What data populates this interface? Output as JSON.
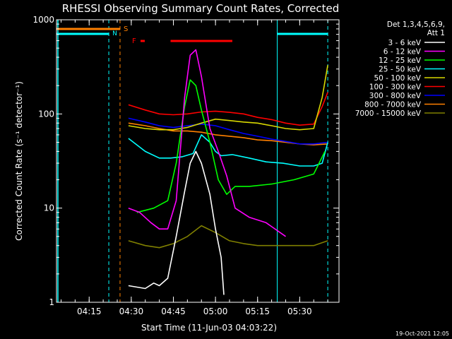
{
  "chart_data": {
    "type": "line",
    "title": "RHESSI Observing Summary Count Rates, Corrected",
    "xlabel": "Start Time (11-Jun-03 04:03:22)",
    "ylabel": "Corrected Count Rate (s⁻¹ detector⁻¹)",
    "y_scale": "log",
    "ylim": [
      1,
      1000
    ],
    "xlim": [
      "04:03:22",
      "05:44:00"
    ],
    "x_ticks": [
      "04:15",
      "04:30",
      "04:45",
      "05:00",
      "05:15",
      "05:30"
    ],
    "y_ticks": [
      "1",
      "10",
      "100",
      "1000"
    ],
    "footer_date": "19-Oct-2021 12:05",
    "legend_header": [
      "Det 1,3,4,5,6,9,",
      "Att 1"
    ],
    "legend_position": "right",
    "markers": {
      "S_label": "S",
      "N_label": "N",
      "F_label": "F",
      "night_intervals": [
        [
          "04:03:22",
          "04:22:00"
        ],
        [
          "05:22:00",
          "05:40:00"
        ]
      ],
      "saa_interval": [
        "04:03:22",
        "04:26:00"
      ],
      "flare_interval": [
        "04:44:00",
        "05:06:00"
      ]
    },
    "series": [
      {
        "name": "3 - 6 keV",
        "color": "#ffffff",
        "x": [
          "04:29",
          "04:35",
          "04:38",
          "04:40",
          "04:43",
          "04:46",
          "04:49",
          "04:51",
          "04:53",
          "04:55",
          "04:58",
          "05:00",
          "05:02",
          "05:03"
        ],
        "y": [
          1.5,
          1.4,
          1.6,
          1.5,
          1.8,
          5,
          15,
          30,
          40,
          30,
          14,
          6,
          3,
          1.2
        ]
      },
      {
        "name": "6 - 12 keV",
        "color": "#ff00ff",
        "x": [
          "04:29",
          "04:33",
          "04:37",
          "04:40",
          "04:43",
          "04:46",
          "04:49",
          "04:51",
          "04:53",
          "04:55",
          "04:58",
          "05:01",
          "05:04",
          "05:07",
          "05:12",
          "05:18",
          "05:25"
        ],
        "y": [
          10,
          9,
          7,
          6,
          6,
          12,
          150,
          420,
          480,
          250,
          70,
          40,
          22,
          10,
          8,
          7,
          5
        ]
      },
      {
        "name": "12 - 25 keV",
        "color": "#00ff00",
        "x": [
          "04:32",
          "04:38",
          "04:43",
          "04:46",
          "04:49",
          "04:51",
          "04:53",
          "04:55",
          "04:58",
          "05:01",
          "05:04",
          "05:07",
          "05:12",
          "05:20",
          "05:28",
          "05:35",
          "05:39"
        ],
        "y": [
          9,
          10,
          12,
          30,
          120,
          230,
          200,
          110,
          50,
          20,
          14,
          17,
          17,
          18,
          20,
          23,
          40
        ]
      },
      {
        "name": "25 - 50 keV",
        "color": "#00ffff",
        "x": [
          "04:29",
          "04:35",
          "04:40",
          "04:44",
          "04:48",
          "04:52",
          "04:55",
          "04:58",
          "05:00",
          "05:02",
          "05:06",
          "05:12",
          "05:18",
          "05:24",
          "05:30",
          "05:35",
          "05:38",
          "05:40"
        ],
        "y": [
          55,
          40,
          34,
          34,
          35,
          38,
          60,
          50,
          40,
          36,
          37,
          34,
          31,
          30,
          28,
          28,
          30,
          50
        ]
      },
      {
        "name": "50 - 100 keV",
        "color": "#d8d800",
        "x": [
          "04:29",
          "04:35",
          "04:40",
          "04:45",
          "04:50",
          "04:55",
          "05:00",
          "05:05",
          "05:10",
          "05:15",
          "05:20",
          "05:25",
          "05:30",
          "05:35",
          "05:38",
          "05:40"
        ],
        "y": [
          75,
          70,
          68,
          68,
          72,
          80,
          88,
          85,
          82,
          80,
          75,
          70,
          68,
          70,
          150,
          330
        ]
      },
      {
        "name": "100 - 300 keV",
        "color": "#ff0000",
        "x": [
          "04:29",
          "04:35",
          "04:40",
          "04:45",
          "04:50",
          "04:55",
          "05:00",
          "05:05",
          "05:10",
          "05:15",
          "05:20",
          "05:25",
          "05:30",
          "05:35",
          "05:38",
          "05:40"
        ],
        "y": [
          125,
          110,
          100,
          98,
          100,
          105,
          107,
          104,
          100,
          92,
          87,
          80,
          76,
          78,
          120,
          170
        ]
      },
      {
        "name": "300 - 800 keV",
        "color": "#0000ff",
        "x": [
          "04:29",
          "04:35",
          "04:40",
          "04:45",
          "04:50",
          "04:55",
          "05:00",
          "05:05",
          "05:10",
          "05:15",
          "05:20",
          "05:25",
          "05:30",
          "05:35",
          "05:40"
        ],
        "y": [
          90,
          82,
          75,
          72,
          75,
          78,
          75,
          68,
          62,
          58,
          54,
          51,
          48,
          48,
          50
        ]
      },
      {
        "name": "800 - 7000 keV",
        "color": "#ff8000",
        "x": [
          "04:29",
          "04:35",
          "04:40",
          "04:45",
          "04:50",
          "04:55",
          "05:00",
          "05:05",
          "05:10",
          "05:15",
          "05:20",
          "05:25",
          "05:30",
          "05:35",
          "05:40"
        ],
        "y": [
          80,
          75,
          70,
          66,
          66,
          64,
          60,
          58,
          56,
          53,
          52,
          50,
          48,
          47,
          48
        ]
      },
      {
        "name": "7000 - 15000 keV",
        "color": "#808000",
        "x": [
          "04:29",
          "04:35",
          "04:40",
          "04:45",
          "04:50",
          "04:55",
          "05:00",
          "05:05",
          "05:10",
          "05:15",
          "05:20",
          "05:25",
          "05:30",
          "05:35",
          "05:40"
        ],
        "y": [
          4.5,
          4,
          3.8,
          4.2,
          5,
          6.5,
          5.5,
          4.5,
          4.2,
          4,
          4,
          4,
          4,
          4,
          4.5
        ]
      }
    ]
  }
}
